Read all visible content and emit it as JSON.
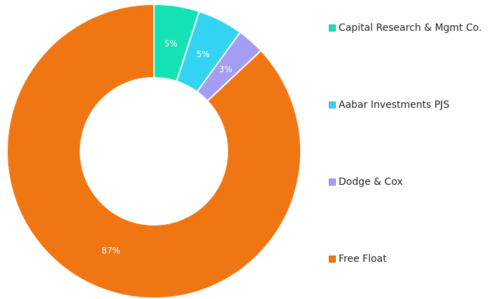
{
  "chart_data": {
    "type": "donut",
    "categories": [
      "Capital Research & Mgmt Co.",
      "Aabar Investments PJS",
      "Dodge & Cox",
      "Free Float"
    ],
    "values": [
      5,
      5,
      3,
      87
    ],
    "value_labels": [
      "5%",
      "5%",
      "3%",
      "87%"
    ],
    "colors": [
      "#14e2b4",
      "#35d3f3",
      "#a49df2",
      "#ef7613"
    ],
    "legend": "right"
  }
}
